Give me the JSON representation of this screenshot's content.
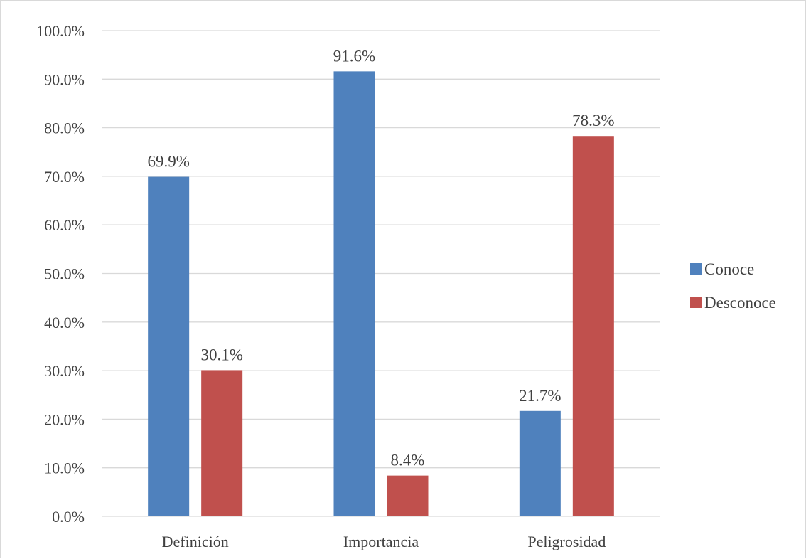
{
  "chart_data": {
    "type": "bar",
    "categories": [
      "Definición",
      "Importancia",
      "Peligrosidad"
    ],
    "series": [
      {
        "name": "Conoce",
        "values": [
          69.9,
          91.6,
          21.7
        ],
        "color": "#4f81bd"
      },
      {
        "name": "Desconoce",
        "values": [
          30.1,
          8.4,
          78.3
        ],
        "color": "#c0504d"
      }
    ],
    "data_labels": [
      [
        "69.9%",
        "91.6%",
        "21.7%"
      ],
      [
        "30.1%",
        "8.4%",
        "78.3%"
      ]
    ],
    "y_ticks": [
      "0.0%",
      "10.0%",
      "20.0%",
      "30.0%",
      "40.0%",
      "50.0%",
      "60.0%",
      "70.0%",
      "80.0%",
      "90.0%",
      "100.0%"
    ],
    "ylim": [
      0,
      100
    ],
    "grid": true,
    "legend_position": "right",
    "title": "",
    "xlabel": "",
    "ylabel": "",
    "gridline_color": "#d9d9d9",
    "axis_color": "#d9d9d9"
  }
}
